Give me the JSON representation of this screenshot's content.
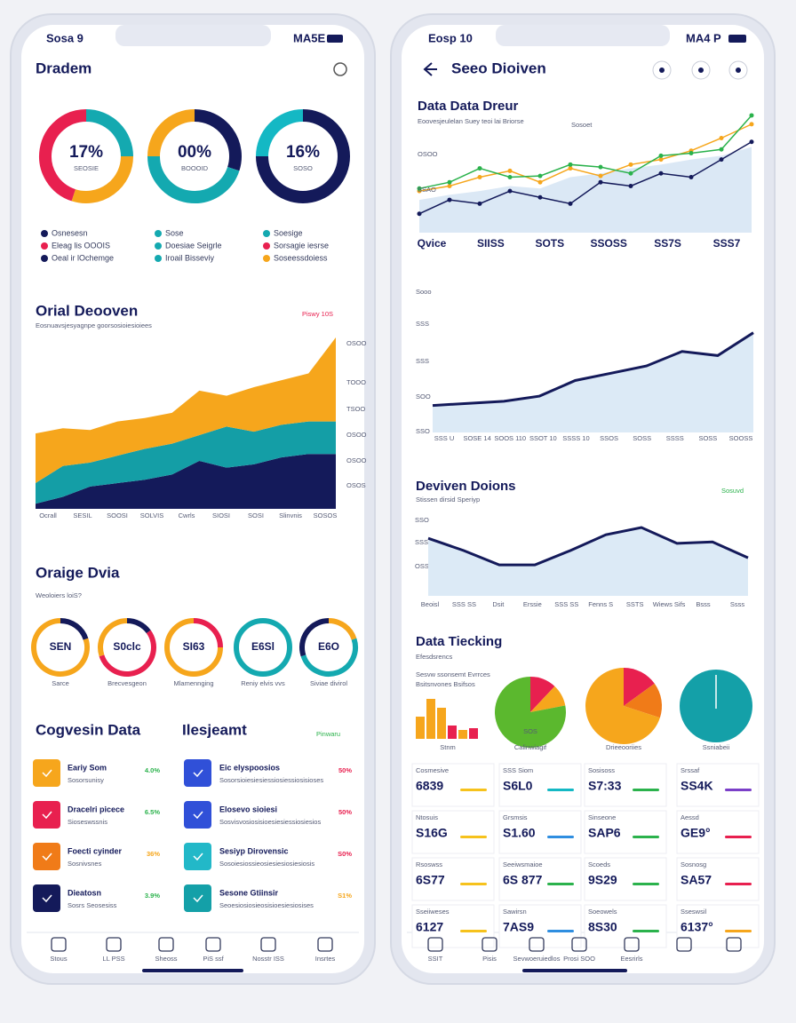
{
  "left": {
    "status": {
      "carrier": "Sosa 9",
      "signal": "MA5E"
    },
    "title": "Dradem",
    "donuts": [
      {
        "label": "17%",
        "caption": "SEOSIE",
        "segments": [
          {
            "value": 25,
            "color": "#14a9b0"
          },
          {
            "value": 30,
            "color": "#f6a61c"
          },
          {
            "value": 45,
            "color": "#e8204f"
          }
        ]
      },
      {
        "label": "00%",
        "caption": "BOOOID",
        "segments": [
          {
            "value": 30,
            "color": "#141a5a"
          },
          {
            "value": 45,
            "color": "#14a9b0"
          },
          {
            "value": 25,
            "color": "#f6a61c"
          }
        ]
      },
      {
        "label": "16%",
        "caption": "SOSO",
        "segments": [
          {
            "value": 75,
            "color": "#141a5a"
          },
          {
            "value": 25,
            "color": "#14b8c4"
          }
        ]
      }
    ],
    "legend": [
      {
        "text": "Osnesesn",
        "color": "#141a5a"
      },
      {
        "text": "Eleag lis OOOIS",
        "color": "#e8204f"
      },
      {
        "text": "Oeal ir lOchemge",
        "color": "#141a5a"
      },
      {
        "text": "Sose",
        "color": "#14a9b0"
      },
      {
        "text": "Doesiae Seigrle",
        "color": "#14a9b0"
      },
      {
        "text": "Iroail Bisseviy",
        "color": "#14a9b0"
      },
      {
        "text": "Soesige",
        "color": "#14a9b0"
      },
      {
        "text": "Sorsagie iesrse",
        "color": "#e8204f"
      },
      {
        "text": "Soseessdoiess",
        "color": "#f6a61c"
      }
    ],
    "section1": {
      "title": "Orial Deooven",
      "subtitle": "Eosnuavsjesyagnpe goorsosioiesioiees",
      "tag": "Piswy 10S"
    },
    "area": {
      "series": [
        {
          "color": "#141a5a",
          "values": [
            3,
            7,
            13,
            15,
            17,
            20,
            28,
            24,
            26,
            30,
            32,
            32
          ]
        },
        {
          "color": "#149ea6",
          "values": [
            12,
            18,
            14,
            16,
            18,
            18,
            15,
            24,
            19,
            19,
            19,
            19
          ]
        },
        {
          "color": "#f6a61c",
          "values": [
            29,
            22,
            19,
            20,
            18,
            18,
            26,
            18,
            26,
            26,
            28,
            49
          ]
        }
      ],
      "yLabels": [
        "OSOO",
        "TOOO",
        "TSOO",
        "OSOO",
        "OSOO",
        "OSOS"
      ],
      "xLabels": [
        "Ocrall",
        "SESIL",
        "SOOSI",
        "SOLVIS",
        "Cwrls",
        "SIOSI",
        "SOSI",
        "Slinvnis",
        "SOSOS"
      ]
    },
    "section2": {
      "title": "Oraige Dvia",
      "subtitle": "Weoloiers loiS?"
    },
    "gauges": [
      {
        "label": "SEN",
        "caption": "Sarce",
        "segments": [
          {
            "value": 20,
            "color": "#141a5a"
          },
          {
            "value": 80,
            "color": "#f6a61c"
          }
        ]
      },
      {
        "label": "S0clc",
        "caption": "Brecvesgeon",
        "segments": [
          {
            "value": 15,
            "color": "#141a5a"
          },
          {
            "value": 55,
            "color": "#e8204f"
          },
          {
            "value": 30,
            "color": "#f6a61c"
          }
        ]
      },
      {
        "label": "SI63",
        "caption": "Mlamennging",
        "segments": [
          {
            "value": 25,
            "color": "#e8204f"
          },
          {
            "value": 75,
            "color": "#f6a61c"
          }
        ]
      },
      {
        "label": "E6Sl",
        "caption": "Reniy elvis vvs",
        "segments": [
          {
            "value": 100,
            "color": "#14a9b0"
          }
        ]
      },
      {
        "label": "E6O",
        "caption": "Siviae divirol",
        "segments": [
          {
            "value": 20,
            "color": "#f6a61c"
          },
          {
            "value": 50,
            "color": "#14a9b0"
          },
          {
            "value": 30,
            "color": "#141a5a"
          }
        ]
      }
    ],
    "section3": {
      "title": "Cogvesin Data",
      "title2": "Ilesjeamt",
      "tag": "Pinwaru"
    },
    "list": [
      {
        "title": "Eariy Som",
        "sub": "Sosorsunisy",
        "pct": "4.0%",
        "icon": "#f6a61c",
        "pctColor": "#2bb24c"
      },
      {
        "title": "Eic elyspoosios",
        "sub": "Sosorsioiesiesiessiosiessiosisioses",
        "pct": "50%",
        "icon": "#3050d8",
        "pctColor": "#e8204f"
      },
      {
        "title": "Dracelri picece",
        "sub": "Sioseswssnis",
        "pct": "6.5%",
        "icon": "#e8204f",
        "pctColor": "#2bb24c"
      },
      {
        "title": "Elosevo sioiesi",
        "sub": "Sosvisvosiosisioesiesiessiosiesios",
        "pct": "50%",
        "icon": "#3050d8",
        "pctColor": "#e8204f"
      },
      {
        "title": "Foecti cyinder",
        "sub": "Sosnivsnes",
        "pct": "36%",
        "icon": "#f07b18",
        "pctColor": "#f6a61c"
      },
      {
        "title": "Sesiyp Dirovensic",
        "sub": "Sosoiesiossieosiesiesiosiesiosis",
        "pct": "S0%",
        "icon": "#22b8c8",
        "pctColor": "#e8204f"
      },
      {
        "title": "Dieatosn",
        "sub": "Sosrs Seosesiss",
        "pct": "3.9%",
        "icon": "#141a5a",
        "pctColor": "#2bb24c"
      },
      {
        "title": "Sesone Gtiinsir",
        "sub": "Seoesiosiosieosisioesiesiosises",
        "pct": "S1%",
        "icon": "#14a0a8",
        "pctColor": "#f6a61c"
      }
    ],
    "nav": [
      "Stous",
      "LL PSS",
      "Sheoss",
      "PiS ssf",
      "Nosstr ISS",
      "Insrtes"
    ]
  },
  "right": {
    "status": {
      "carrier": "Eosp 10",
      "signal": "MA4 P"
    },
    "title": "Seeo Dioiven",
    "chart1": {
      "title": "Data Data Dreur",
      "subtitle": "Eoovesjeulelan Suey teoi lai Briorse",
      "legend": "Sosoet",
      "area": [
        26,
        30,
        33,
        37,
        35,
        44,
        47,
        51,
        54,
        58,
        61,
        68
      ],
      "series": [
        {
          "color": "#141a5a",
          "values": [
            15,
            26,
            23,
            33,
            28,
            23,
            40,
            37,
            47,
            44,
            58,
            72
          ]
        },
        {
          "color": "#f6a61c",
          "values": [
            33,
            37,
            44,
            49,
            40,
            51,
            45,
            54,
            58,
            65,
            75,
            86
          ]
        },
        {
          "color": "#2bb24c",
          "values": [
            35,
            40,
            51,
            44,
            45,
            54,
            52,
            47,
            61,
            63,
            66,
            93
          ]
        }
      ],
      "yLabels": [
        "OSOO",
        "SSAO"
      ],
      "xLabels": [
        "Qvice",
        "SIISS",
        "SOTS",
        "SSOSS",
        "SS7S",
        "SSS7"
      ]
    },
    "chart2": {
      "label": "Sooo",
      "yLabels": [
        "SSS",
        "SSS",
        "SOO",
        "SSO"
      ],
      "values": [
        26,
        28,
        30,
        35,
        50,
        57,
        64,
        78,
        74,
        96
      ],
      "color": "#141a5a",
      "xLabels": [
        "SSS U",
        "SOSE 14",
        "SOOS 110",
        "SSOT 10",
        "SSSS 10",
        "SSOS",
        "SOSS",
        "SSSS",
        "SOSS",
        "SOOSS"
      ]
    },
    "section2": {
      "title": "Deviven Doions",
      "subtitle": "Stissen dirsid Speriyp",
      "tag": "Sosuvd"
    },
    "chart3": {
      "yLabels": [
        "SSO",
        "SSS",
        "OSS"
      ],
      "values": [
        80,
        63,
        43,
        43,
        63,
        85,
        95,
        73,
        75,
        53
      ],
      "color": "#141a5a",
      "xLabels": [
        "Beoisl",
        "SSS SS",
        "Dsit",
        "Erssie",
        "SSS SS",
        "Fenns S",
        "SSTS",
        "Wiews Sifs",
        "Bsss",
        "Ssss"
      ]
    },
    "section3": {
      "title": "Data Tiecking",
      "subtitle": "Efesdsrencs",
      "note1": "Sesvw ssonsemt Evrrces",
      "note2": "Bsitsnvones Bsifsos"
    },
    "bars": {
      "caption": "Stnm",
      "values": [
        25,
        45,
        35,
        15,
        10,
        12
      ],
      "colors": [
        "#f6a61c",
        "#f6a61c",
        "#f6a61c",
        "#e8204f",
        "#f6a61c",
        "#e8204f"
      ]
    },
    "pies": [
      {
        "caption": "Calinwiagif",
        "center": "SOS",
        "segments": [
          {
            "value": 12,
            "color": "#e8204f"
          },
          {
            "value": 10,
            "color": "#f6a61c"
          },
          {
            "value": 78,
            "color": "#5bb82e"
          }
        ]
      },
      {
        "caption": "Drieeooriies",
        "center": "",
        "segments": [
          {
            "value": 15,
            "color": "#e8204f"
          },
          {
            "value": 15,
            "color": "#f07b18"
          },
          {
            "value": 70,
            "color": "#f6a61c"
          }
        ]
      },
      {
        "caption": "Ssniabeii",
        "center": "",
        "segments": [
          {
            "value": 100,
            "color": "#14a0a8"
          }
        ]
      }
    ],
    "stats": [
      {
        "label": "Cosmesive",
        "value": "6839",
        "color": "#f6c21c"
      },
      {
        "label": "SSS Siom",
        "value": "S6L0",
        "color": "#14b8c4"
      },
      {
        "label": "Sosisoss",
        "value": "S7:33",
        "color": "#2bb24c"
      },
      {
        "label": "Srssaf",
        "value": "SS4K",
        "color": "#7b3fc8"
      },
      {
        "label": "Ntosuis",
        "value": "S16G",
        "color": "#f6c21c"
      },
      {
        "label": "Grsmsis",
        "value": "S1.60",
        "color": "#2f8ee0"
      },
      {
        "label": "Sinseone",
        "value": "SAP6",
        "color": "#2bb24c"
      },
      {
        "label": "Aessd",
        "value": "GE9°",
        "color": "#e8204f"
      },
      {
        "label": "Rsoswss",
        "value": "6S77",
        "color": "#f6c21c"
      },
      {
        "label": "Seeiwsmaioe",
        "value": "6S 877",
        "color": "#2bb24c"
      },
      {
        "label": "Scoeds",
        "value": "9S29",
        "color": "#2bb24c"
      },
      {
        "label": "Sosnosg",
        "value": "SA57",
        "color": "#e8204f"
      },
      {
        "label": "Sseiiweses",
        "value": "6127",
        "color": "#f6c21c"
      },
      {
        "label": "Sawirsn",
        "value": "7AS9",
        "color": "#2f8ee0"
      },
      {
        "label": "Soeowels",
        "value": "8S30",
        "color": "#2bb24c"
      },
      {
        "label": "Sseswsil",
        "value": "6137°",
        "color": "#f6a61c"
      }
    ],
    "nav": [
      "SSIT",
      "Pisis",
      "Sevwoeruiedlos",
      "Prosi SOO",
      "Eesrirls"
    ]
  }
}
